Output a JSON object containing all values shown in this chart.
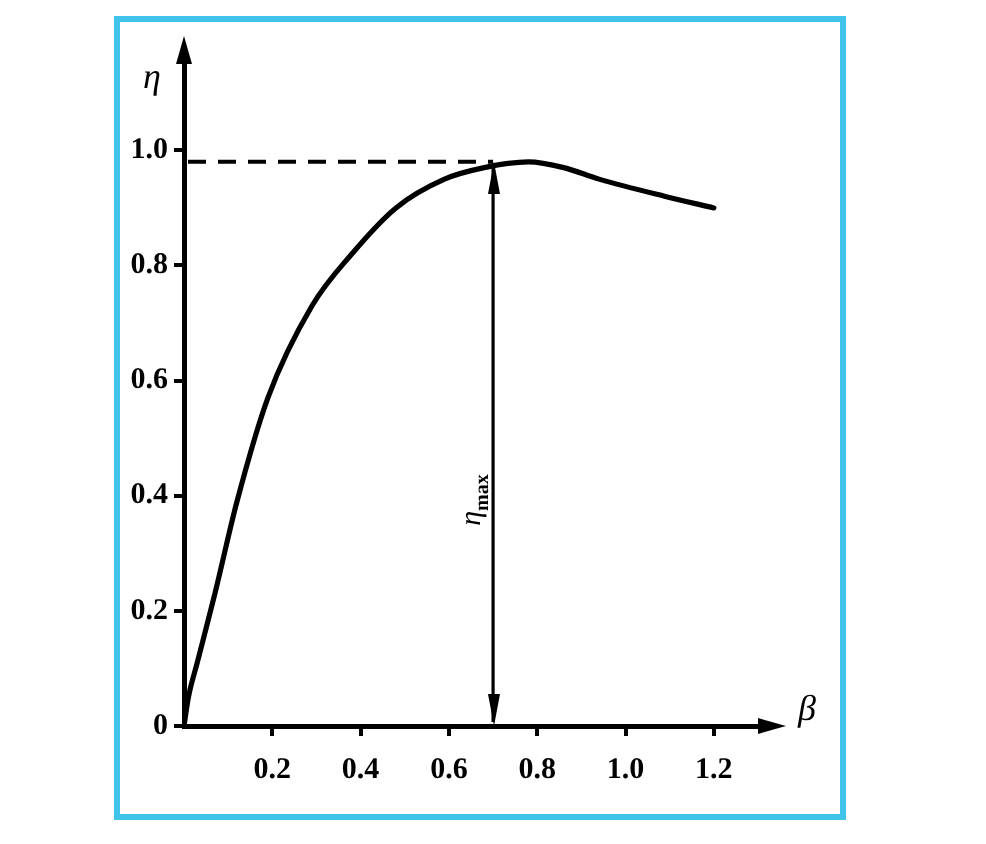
{
  "chart_data": {
    "type": "line",
    "xlabel": "β",
    "ylabel": "η",
    "marker": "none",
    "x": [
      0,
      0.01,
      0.03,
      0.07,
      0.12,
      0.19,
      0.29,
      0.38,
      0.48,
      0.59,
      0.68,
      0.78,
      0.86,
      0.94,
      1.09,
      1.2
    ],
    "series": [
      {
        "color": "#000000",
        "values": [
          0,
          0.05,
          0.11,
          0.23,
          0.39,
          0.57,
          0.73,
          0.82,
          0.9,
          0.95,
          0.97,
          0.98,
          0.97,
          0.95,
          0.92,
          0.9
        ]
      }
    ],
    "xlim": [
      0,
      1.3
    ],
    "xticks": [
      0.2,
      0.4,
      0.6,
      0.8,
      {
        "value": 1,
        "label": "1.0"
      },
      1.2
    ],
    "ylim": [
      0,
      1.15
    ],
    "yticks": [
      0,
      0.2,
      0.4,
      0.6,
      0.8,
      {
        "value": 1,
        "label": "1.0"
      }
    ],
    "ref_lines": [
      {
        "axis": "y",
        "value": 0.98,
        "color": "#000000",
        "line_style": "dashed"
      },
      {
        "axis": "x",
        "value": 0.7,
        "color": "#000000",
        "label": "η$_{max}$"
      }
    ]
  }
}
